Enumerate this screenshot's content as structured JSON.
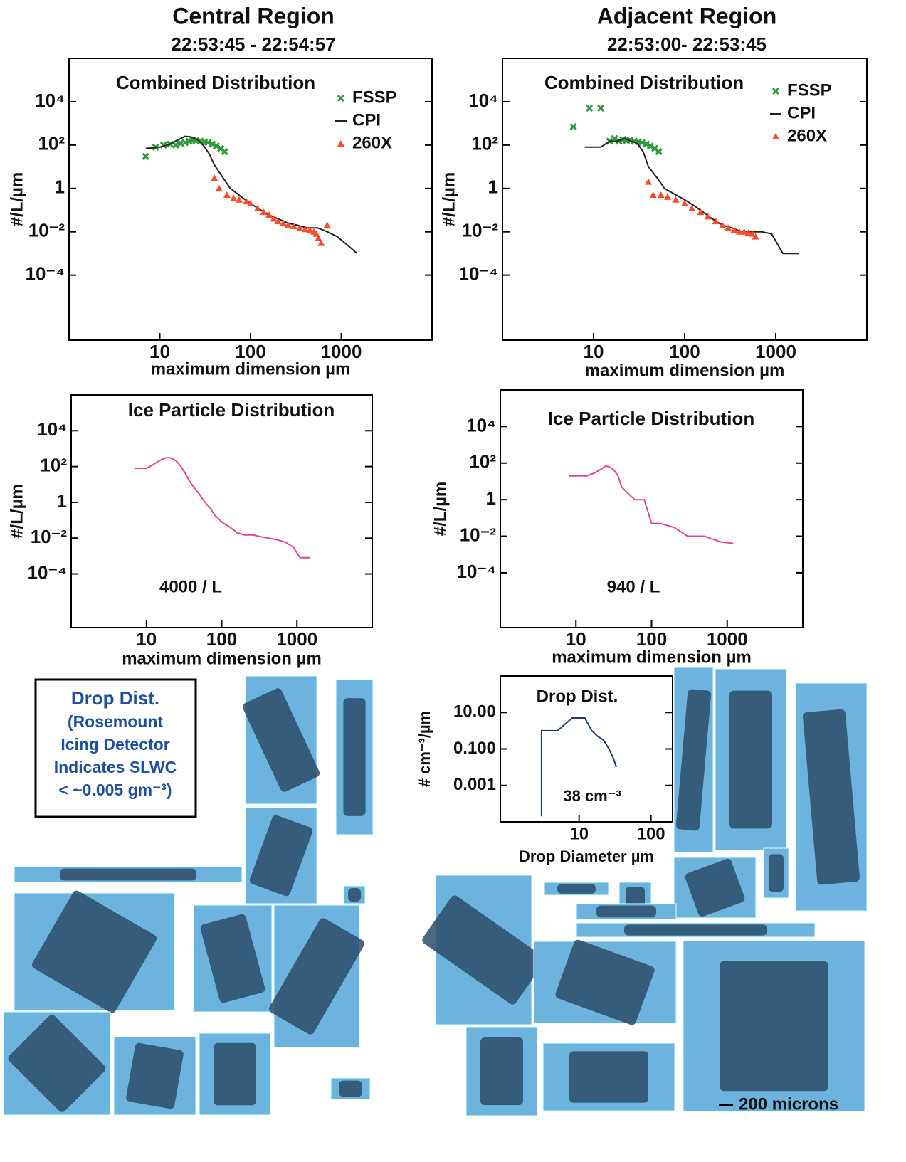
{
  "header": {
    "left_title": "Central Region",
    "left_time": "22:53:45 - 22:54:57",
    "right_title": "Adjacent Region",
    "right_time": "22:53:00- 22:53:45"
  },
  "notes": {
    "drop_box": [
      "Drop Dist.",
      "(Rosemount",
      "Icing Detector",
      "Indicates SLWC",
      "< ~0.005 gm⁻³)"
    ],
    "scale_bar": "200 microns"
  },
  "chart_data": [
    {
      "type": "line",
      "title": "Combined Distribution",
      "xlabel": "maximum dimension µm",
      "ylabel": "#/L/µm",
      "xscale": "log",
      "yscale": "log",
      "xlim": [
        1,
        10000
      ],
      "ylim": [
        1e-07,
        1000000
      ],
      "xticks": [
        10,
        100,
        1000
      ],
      "yticks": [
        {
          "value": 10000,
          "label": "10⁴"
        },
        {
          "value": 100,
          "label": "10²"
        },
        1,
        {
          "value": 0.01,
          "label": "10⁻²"
        },
        {
          "value": 0.0001,
          "label": "10⁻⁴"
        }
      ],
      "legend": "upper right",
      "series": [
        {
          "name": "FSSP",
          "color": "#2e9a3a",
          "marker": "x",
          "x": [
            7,
            9,
            11,
            13,
            15,
            17,
            19,
            21,
            23,
            25,
            28,
            31,
            34,
            38,
            42,
            47,
            52
          ],
          "values": [
            30,
            80,
            100,
            110,
            100,
            120,
            130,
            150,
            170,
            160,
            150,
            140,
            130,
            110,
            90,
            70,
            50
          ]
        },
        {
          "name": "CPI",
          "color": "#222222",
          "marker": "none",
          "x": [
            7,
            10,
            13,
            16,
            19,
            22,
            26,
            30,
            35,
            40,
            50,
            60,
            80,
            100,
            130,
            160,
            200,
            260,
            330,
            420,
            550,
            700,
            900,
            1100,
            1500
          ],
          "values": [
            70,
            80,
            110,
            180,
            250,
            240,
            180,
            100,
            40,
            12,
            3,
            1,
            0.4,
            0.2,
            0.1,
            0.06,
            0.04,
            0.025,
            0.02,
            0.015,
            0.015,
            0.01,
            0.006,
            0.003,
            0.001
          ]
        },
        {
          "name": "260X",
          "color": "#ff4a2a",
          "marker": "triangle",
          "x": [
            40,
            45,
            55,
            65,
            75,
            90,
            100,
            120,
            140,
            160,
            180,
            200,
            230,
            260,
            300,
            350,
            400,
            450,
            500,
            530,
            560,
            600,
            700
          ],
          "values": [
            3,
            1,
            0.5,
            0.35,
            0.3,
            0.25,
            0.2,
            0.12,
            0.08,
            0.06,
            0.04,
            0.03,
            0.025,
            0.02,
            0.018,
            0.015,
            0.013,
            0.012,
            0.01,
            0.008,
            0.005,
            0.003,
            0.02
          ]
        }
      ]
    },
    {
      "type": "line",
      "title": "Combined Distribution",
      "xlabel": "maximum dimension µm",
      "ylabel": "#/L/µm",
      "xscale": "log",
      "yscale": "log",
      "xlim": [
        1,
        10000
      ],
      "ylim": [
        1e-07,
        1000000
      ],
      "xticks": [
        10,
        100,
        1000
      ],
      "yticks": [
        {
          "value": 10000,
          "label": "10⁴"
        },
        {
          "value": 100,
          "label": "10²"
        },
        1,
        {
          "value": 0.01,
          "label": "10⁻²"
        },
        {
          "value": 0.0001,
          "label": "10⁻⁴"
        }
      ],
      "legend": "upper right",
      "series": [
        {
          "name": "FSSP",
          "color": "#2e9a3a",
          "marker": "x",
          "x": [
            6,
            9,
            12,
            15,
            17,
            19,
            21,
            23,
            25,
            28,
            31,
            34,
            38,
            42,
            47,
            52
          ],
          "values": [
            700,
            5000,
            5000,
            150,
            200,
            150,
            180,
            160,
            170,
            150,
            140,
            130,
            110,
            90,
            70,
            50
          ]
        },
        {
          "name": "CPI",
          "color": "#222222",
          "marker": "none",
          "x": [
            8,
            12,
            15,
            18,
            22,
            26,
            30,
            35,
            40,
            50,
            60,
            80,
            100,
            130,
            160,
            200,
            260,
            330,
            420,
            550,
            700,
            900,
            1200,
            1800
          ],
          "values": [
            80,
            80,
            150,
            150,
            200,
            150,
            120,
            50,
            10,
            3,
            1,
            0.5,
            0.3,
            0.15,
            0.08,
            0.04,
            0.02,
            0.015,
            0.01,
            0.01,
            0.01,
            0.008,
            0.001,
            0.001
          ]
        },
        {
          "name": "260X",
          "color": "#ff4a2a",
          "marker": "triangle",
          "x": [
            40,
            45,
            55,
            65,
            80,
            100,
            120,
            150,
            180,
            220,
            260,
            300,
            350,
            400,
            450,
            500,
            550,
            600
          ],
          "values": [
            2,
            0.5,
            0.5,
            0.4,
            0.3,
            0.2,
            0.12,
            0.08,
            0.05,
            0.03,
            0.02,
            0.015,
            0.012,
            0.01,
            0.01,
            0.009,
            0.008,
            0.006
          ]
        }
      ]
    },
    {
      "type": "line",
      "title": "Ice Particle Distribution",
      "xlabel": "maximum dimension µm",
      "ylabel": "#/L/µm",
      "xscale": "log",
      "yscale": "log",
      "xlim": [
        1,
        10000
      ],
      "ylim": [
        1e-07,
        1000000
      ],
      "xticks": [
        10,
        100,
        1000
      ],
      "yticks": [
        {
          "value": 10000,
          "label": "10⁴"
        },
        {
          "value": 100,
          "label": "10²"
        },
        1,
        {
          "value": 0.01,
          "label": "10⁻²"
        },
        {
          "value": 0.0001,
          "label": "10⁻⁴"
        }
      ],
      "annotation": "4000 / L",
      "series": [
        {
          "color": "#e0479a",
          "marker": "none",
          "x": [
            7,
            10,
            12,
            14,
            16,
            18,
            20,
            22,
            25,
            28,
            32,
            36,
            40,
            50,
            60,
            70,
            80,
            100,
            130,
            160,
            200,
            260,
            330,
            420,
            550,
            700,
            900,
            1100,
            1500
          ],
          "values": [
            80,
            80,
            120,
            180,
            250,
            300,
            320,
            280,
            200,
            120,
            50,
            20,
            10,
            3,
            1,
            0.5,
            0.2,
            0.08,
            0.04,
            0.02,
            0.015,
            0.015,
            0.012,
            0.01,
            0.008,
            0.006,
            0.003,
            0.0008,
            0.0008
          ]
        }
      ]
    },
    {
      "type": "line",
      "title": "Ice Particle Distribution",
      "xlabel": "maximum dimension µm",
      "ylabel": "#/L/µm",
      "xscale": "log",
      "yscale": "log",
      "xlim": [
        1,
        10000
      ],
      "ylim": [
        1e-07,
        1000000
      ],
      "xticks": [
        10,
        100,
        1000
      ],
      "yticks": [
        {
          "value": 10000,
          "label": "10⁴"
        },
        {
          "value": 100,
          "label": "10²"
        },
        1,
        {
          "value": 0.01,
          "label": "10⁻²"
        },
        {
          "value": 0.0001,
          "label": "10⁻⁴"
        }
      ],
      "annotation": "940 / L",
      "series": [
        {
          "color": "#e0479a",
          "marker": "none",
          "x": [
            8,
            14,
            18,
            22,
            25,
            28,
            32,
            36,
            40,
            50,
            60,
            80,
            100,
            130,
            200,
            300,
            500,
            800,
            1200
          ],
          "values": [
            20,
            20,
            30,
            50,
            70,
            60,
            40,
            20,
            5,
            2,
            1,
            1,
            0.05,
            0.05,
            0.03,
            0.01,
            0.01,
            0.005,
            0.004
          ]
        }
      ]
    },
    {
      "type": "line",
      "title": "Drop Dist.",
      "xlabel": "Drop Diameter µm",
      "ylabel": "# cm⁻³/µm",
      "xscale": "log",
      "yscale": "log",
      "xlim": [
        0.8,
        200
      ],
      "ylim": [
        1e-05,
        1000
      ],
      "xticks": [
        10,
        100
      ],
      "yticks": [
        {
          "value": 10,
          "label": "10.00"
        },
        {
          "value": 0.1,
          "label": "0.100"
        },
        0.001
      ],
      "annotation": "38 cm⁻³",
      "series": [
        {
          "color": "#1f3a6e",
          "marker": "none",
          "x": [
            3,
            3,
            5,
            8,
            10,
            12,
            15,
            18,
            22,
            26,
            30,
            33
          ],
          "values": [
            2e-05,
            1,
            1,
            5,
            5,
            5,
            1,
            0.5,
            0.3,
            0.1,
            0.03,
            0.01
          ]
        }
      ]
    }
  ]
}
